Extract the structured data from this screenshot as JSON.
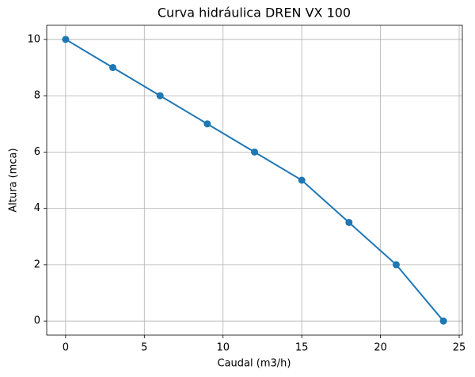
{
  "chart_data": {
    "type": "line",
    "title": "Curva hidráulica DREN VX 100",
    "x_label": "Caudal (m3/h)",
    "y_label": "Altura (mca)",
    "x": [
      0,
      3,
      6,
      9,
      12,
      15,
      18,
      21,
      24
    ],
    "values": [
      10,
      9,
      8,
      7,
      6,
      5,
      3.5,
      2,
      0
    ],
    "color": "#1f77b4",
    "xlim": [
      -1.2,
      25.2
    ],
    "xticks": [
      0,
      5,
      10,
      15,
      20,
      25
    ],
    "ylim": [
      -0.5,
      10.5
    ],
    "yticks": [
      0,
      2,
      4,
      6,
      8,
      10
    ],
    "grid": true,
    "markers": true
  }
}
